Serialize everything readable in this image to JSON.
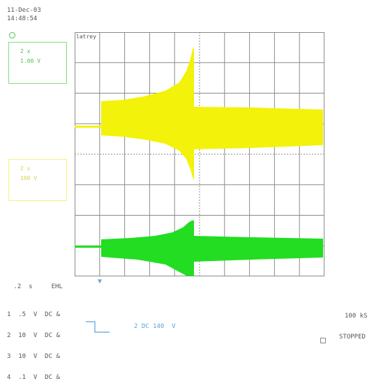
{
  "header": {
    "date": "11-Dec-03",
    "time": "14:48:54"
  },
  "channel_boxes": {
    "green": {
      "line1": "2 x",
      "line2": "1.00 V",
      "color": "#22dd22"
    },
    "yellow": {
      "line1": "2 x",
      "line2": "100 V",
      "color": "#f0f000"
    }
  },
  "screen": {
    "tag": "latrey"
  },
  "footer": {
    "timebase": " .2  s     EHL",
    "channels": [
      "1  .5  V  DC &",
      "2  10  V  DC &",
      "3  10  V  DC &",
      "4  .1  V  DC &"
    ],
    "trigger": "2 DC 140  V",
    "sample_rate": "100 kS",
    "status": "STOPPED"
  },
  "colors": {
    "yellow_trace": "#f2f20a",
    "green_trace": "#22dd22",
    "grid": "#8a8a8a"
  },
  "icons": {
    "trigger_top": "trigger-marker-icon",
    "trigger_bottom": "trigger-position-arrow-icon",
    "trigger_edge": "falling-edge-icon",
    "status": "stop-square-icon"
  }
}
